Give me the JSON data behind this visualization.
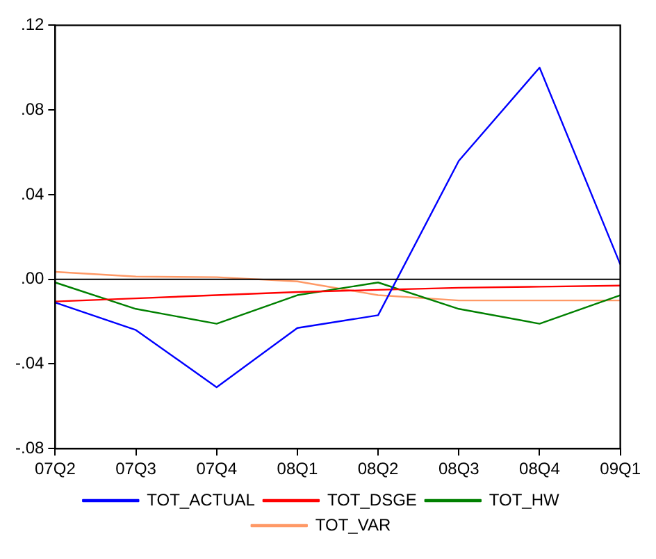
{
  "chart_data": {
    "type": "line",
    "categories": [
      "07Q2",
      "07Q3",
      "07Q4",
      "08Q1",
      "08Q2",
      "08Q3",
      "08Q4",
      "09Q1"
    ],
    "series": [
      {
        "name": "TOT_ACTUAL",
        "color": "#0000ff",
        "values": [
          -0.011,
          -0.024,
          -0.051,
          -0.023,
          -0.017,
          0.056,
          0.1,
          0.007
        ]
      },
      {
        "name": "TOT_DSGE",
        "color": "#ff0000",
        "values": [
          -0.0105,
          -0.009,
          -0.0075,
          -0.006,
          -0.005,
          -0.004,
          -0.0035,
          -0.003
        ]
      },
      {
        "name": "TOT_HW",
        "color": "#008000",
        "values": [
          -0.0015,
          -0.014,
          -0.021,
          -0.0075,
          -0.0015,
          -0.014,
          -0.021,
          -0.0075
        ]
      },
      {
        "name": "TOT_VAR",
        "color": "#ff9966",
        "values": [
          0.0035,
          0.0013,
          0.001,
          -0.001,
          -0.0075,
          -0.01,
          -0.01,
          -0.01
        ]
      }
    ],
    "ylim": [
      -0.08,
      0.12
    ],
    "yticks": [
      {
        "value": -0.08,
        "label": "-.08"
      },
      {
        "value": -0.04,
        "label": "-.04"
      },
      {
        "value": 0,
        "label": ".00"
      },
      {
        "value": 0.04,
        "label": ".04"
      },
      {
        "value": 0.08,
        "label": ".08"
      },
      {
        "value": 0.12,
        "label": ".12"
      }
    ],
    "ref_lines": [
      {
        "axis": "y",
        "value": 0,
        "color": "#000000"
      }
    ],
    "grid": false,
    "legend": "bottom",
    "marker": "none",
    "line_style": "solid"
  }
}
